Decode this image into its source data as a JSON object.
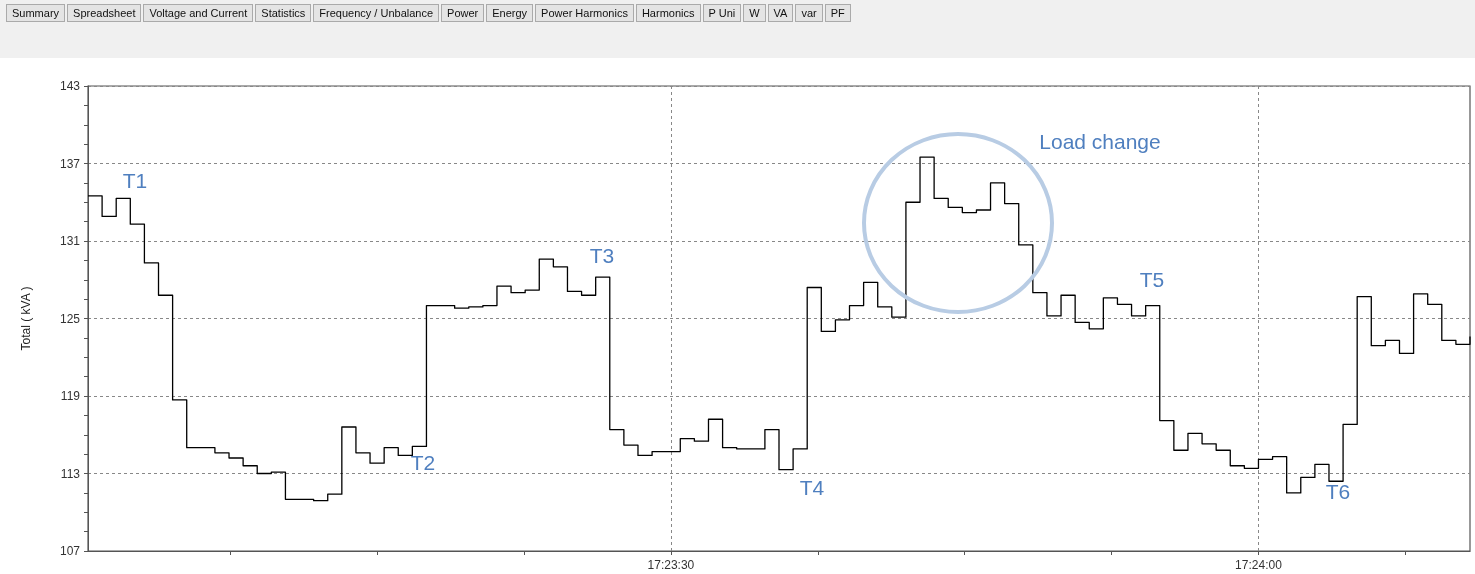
{
  "chart_data": {
    "type": "step",
    "ylabel": "Total ( kVA )",
    "x": [
      17.3834,
      17.3836,
      17.3838,
      17.384,
      17.3842,
      17.3844,
      17.3846,
      17.3848,
      17.385,
      17.3852,
      17.3854,
      17.3856,
      17.3858,
      17.386,
      17.3862,
      17.3864,
      17.3866,
      17.3868,
      17.387,
      17.3872,
      17.3874,
      17.3876,
      17.3878,
      17.388,
      17.3882,
      17.3884,
      17.3886,
      17.3888,
      17.389,
      17.3892,
      17.3894,
      17.3896,
      17.3898,
      17.39,
      17.3902,
      17.3904,
      17.3906,
      17.3908,
      17.391,
      17.3912,
      17.3914,
      17.3916,
      17.3918,
      17.392,
      17.3922,
      17.3924,
      17.3926,
      17.3928,
      17.393,
      17.3932,
      17.3934,
      17.3936,
      17.3938,
      17.394,
      17.3942,
      17.3944,
      17.3946,
      17.3948,
      17.395,
      17.3952,
      17.3954,
      17.3956,
      17.3958,
      17.396,
      17.3962,
      17.3964,
      17.3966,
      17.3968,
      17.397,
      17.3972,
      17.3974,
      17.3976,
      17.3978,
      17.398,
      17.3982,
      17.3984,
      17.3986,
      17.3988,
      17.399,
      17.3992,
      17.3994,
      17.3996,
      17.3998,
      17.4,
      17.4002,
      17.4004,
      17.4006,
      17.4008,
      17.401,
      17.4012,
      17.4014,
      17.4016,
      17.4018,
      17.402,
      17.4022,
      17.4024,
      17.4026,
      17.4028,
      17.403
    ],
    "series": [
      {
        "color": "#000000",
        "values": [
          134.5,
          132.9,
          134.3,
          132.3,
          129.3,
          126.8,
          118.7,
          115.0,
          115.0,
          114.6,
          114.2,
          113.6,
          113.0,
          113.1,
          111.0,
          111.0,
          110.9,
          111.4,
          116.6,
          114.6,
          113.8,
          115.0,
          114.4,
          115.1,
          126.0,
          126.0,
          125.8,
          125.9,
          126.0,
          127.5,
          127.0,
          127.2,
          129.6,
          129.0,
          127.1,
          126.8,
          128.2,
          116.4,
          115.2,
          114.4,
          114.7,
          114.7,
          115.7,
          115.5,
          117.2,
          115.0,
          114.9,
          114.9,
          116.4,
          113.3,
          114.9,
          127.4,
          124.0,
          124.9,
          126.0,
          127.8,
          125.9,
          125.1,
          134.0,
          137.5,
          134.3,
          133.6,
          133.2,
          133.4,
          135.5,
          133.9,
          130.7,
          127.0,
          125.2,
          126.8,
          124.7,
          124.2,
          126.6,
          126.1,
          125.2,
          126.0,
          117.1,
          114.8,
          116.1,
          115.3,
          114.8,
          113.6,
          113.4,
          114.1,
          114.3,
          111.5,
          112.7,
          113.7,
          112.4,
          116.8,
          126.7,
          122.9,
          123.3,
          122.3,
          126.9,
          126.1,
          123.3,
          123.0,
          123.6
        ]
      }
    ],
    "xlim": [
      17.3834,
      17.403
    ],
    "xticks": [
      {
        "value": 17.385417,
        "label": null
      },
      {
        "value": 17.3875,
        "label": null
      },
      {
        "value": 17.389583,
        "label": null
      },
      {
        "value": 17.391667,
        "label": "17:23:30"
      },
      {
        "value": 17.39375,
        "label": null
      },
      {
        "value": 17.395833,
        "label": null
      },
      {
        "value": 17.397917,
        "label": null
      },
      {
        "value": 17.4,
        "label": "17:24:00"
      },
      {
        "value": 17.402083,
        "label": null
      }
    ],
    "ylim": [
      107,
      143
    ],
    "yticks": [
      107,
      {
        "value": 108.5,
        "label": null
      },
      {
        "value": 110,
        "label": null
      },
      {
        "value": 111.5,
        "label": null
      },
      113,
      {
        "value": 114.5,
        "label": null
      },
      {
        "value": 116,
        "label": null
      },
      {
        "value": 117.5,
        "label": null
      },
      119,
      {
        "value": 120.5,
        "label": null
      },
      {
        "value": 122,
        "label": null
      },
      {
        "value": 123.5,
        "label": null
      },
      125,
      {
        "value": 126.5,
        "label": null
      },
      {
        "value": 128,
        "label": null
      },
      {
        "value": 129.5,
        "label": null
      },
      131,
      {
        "value": 132.5,
        "label": null
      },
      {
        "value": 134,
        "label": null
      },
      {
        "value": 135.5,
        "label": null
      },
      137,
      {
        "value": 138.5,
        "label": null
      },
      {
        "value": 140,
        "label": null
      },
      {
        "value": 141.5,
        "label": null
      },
      143
    ],
    "grid": true,
    "marker": "none",
    "line_style": "solid",
    "annotations": [
      "Summary",
      "Spreadsheet",
      "Voltage and Current",
      "Statistics",
      "Frequency / Unbalance",
      "Power",
      "Energy",
      "Power Harmonics",
      "Harmonics",
      "P Uni",
      "W",
      "VA",
      "var",
      "PF",
      "T1",
      "T2",
      "T3",
      "T4",
      "T5",
      "T6",
      "Load change"
    ]
  }
}
